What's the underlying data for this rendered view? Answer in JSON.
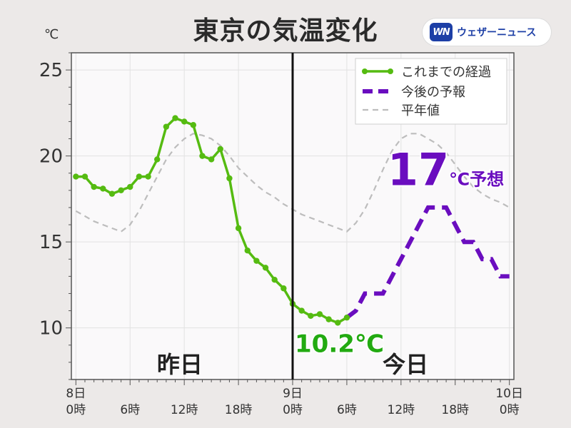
{
  "title": "東京の気温変化",
  "brand": {
    "mark": "WN",
    "name": "ウェザーニュース"
  },
  "colors": {
    "observed": "#55bb11",
    "forecast": "#6a0dbf",
    "normal": "#bdbdbd",
    "plot_bg": "#faf9fa",
    "grid": "#e2e2e2",
    "current_value": "#22aa11"
  },
  "chart_data": {
    "type": "line",
    "ylabel": "℃",
    "ylim": [
      7,
      26
    ],
    "xlim": [
      -0.5,
      48.5
    ],
    "y_ticks": [
      10,
      15,
      20,
      25
    ],
    "x_ticks": [
      {
        "x": 0,
        "line1": "8日",
        "line2": "0時"
      },
      {
        "x": 6,
        "line1": "",
        "line2": "6時"
      },
      {
        "x": 12,
        "line1": "",
        "line2": "12時"
      },
      {
        "x": 18,
        "line1": "",
        "line2": "18時"
      },
      {
        "x": 24,
        "line1": "9日",
        "line2": "0時"
      },
      {
        "x": 30,
        "line1": "",
        "line2": "6時"
      },
      {
        "x": 36,
        "line1": "",
        "line2": "12時"
      },
      {
        "x": 42,
        "line1": "",
        "line2": "18時"
      },
      {
        "x": 48,
        "line1": "10日",
        "line2": "0時"
      }
    ],
    "grid": true,
    "legend_position": "top-right",
    "divider_x": 24,
    "day_labels": [
      {
        "x": 11.5,
        "text": "昨日"
      },
      {
        "x": 36.5,
        "text": "今日"
      }
    ],
    "series": [
      {
        "name": "これまでの経過",
        "style": "solid-markers",
        "x": [
          0,
          1,
          2,
          3,
          4,
          5,
          6,
          7,
          8,
          9,
          10,
          11,
          12,
          13,
          14,
          15,
          16,
          17,
          18,
          19,
          20,
          21,
          22,
          23,
          24,
          25,
          26,
          27,
          28,
          29,
          30
        ],
        "y": [
          18.8,
          18.8,
          18.2,
          18.1,
          17.8,
          18.0,
          18.2,
          18.8,
          18.8,
          19.8,
          21.7,
          22.2,
          22.0,
          21.8,
          20.0,
          19.8,
          20.4,
          18.7,
          15.8,
          14.5,
          13.9,
          13.5,
          12.8,
          12.3,
          11.4,
          11.0,
          10.7,
          10.8,
          10.5,
          10.3,
          10.6
        ]
      },
      {
        "name": "今後の予報",
        "style": "dashed-thick",
        "x": [
          30,
          31,
          32,
          33,
          34,
          35,
          36,
          37,
          38,
          39,
          40,
          41,
          42,
          43,
          44,
          45,
          46,
          47,
          48
        ],
        "y": [
          10.6,
          11.0,
          12.0,
          12.0,
          12.0,
          13.0,
          14.0,
          15.0,
          16.0,
          17.0,
          17.0,
          17.0,
          16.0,
          15.0,
          15.0,
          14.0,
          14.0,
          13.0,
          13.0
        ]
      },
      {
        "name": "平年値",
        "style": "dashed-thin",
        "x": [
          0,
          1,
          2,
          3,
          4,
          5,
          6,
          7,
          8,
          9,
          10,
          11,
          12,
          13,
          14,
          15,
          16,
          17,
          18,
          19,
          20,
          21,
          22,
          23,
          24,
          25,
          26,
          27,
          28,
          29,
          30,
          31,
          32,
          33,
          34,
          35,
          36,
          37,
          38,
          39,
          40,
          41,
          42,
          43,
          44,
          45,
          46,
          47,
          48
        ],
        "y": [
          16.8,
          16.5,
          16.2,
          16.0,
          15.8,
          15.6,
          16.0,
          16.8,
          17.8,
          18.8,
          19.8,
          20.5,
          21.0,
          21.3,
          21.2,
          21.0,
          20.6,
          20.0,
          19.3,
          18.8,
          18.3,
          17.9,
          17.6,
          17.2,
          16.9,
          16.6,
          16.4,
          16.2,
          16.0,
          15.8,
          15.6,
          16.1,
          16.9,
          18.0,
          19.2,
          20.3,
          21.0,
          21.3,
          21.3,
          21.0,
          20.7,
          20.2,
          19.5,
          18.8,
          18.2,
          17.8,
          17.5,
          17.3,
          17.0
        ]
      }
    ],
    "annotations": [
      {
        "text": "10.2℃",
        "x": 24,
        "y": 9.5,
        "color_key": "current_value"
      },
      {
        "text_big": "17",
        "text_small": "℃予想",
        "x": 34.5,
        "y": 18.3,
        "color_key": "forecast"
      }
    ]
  }
}
